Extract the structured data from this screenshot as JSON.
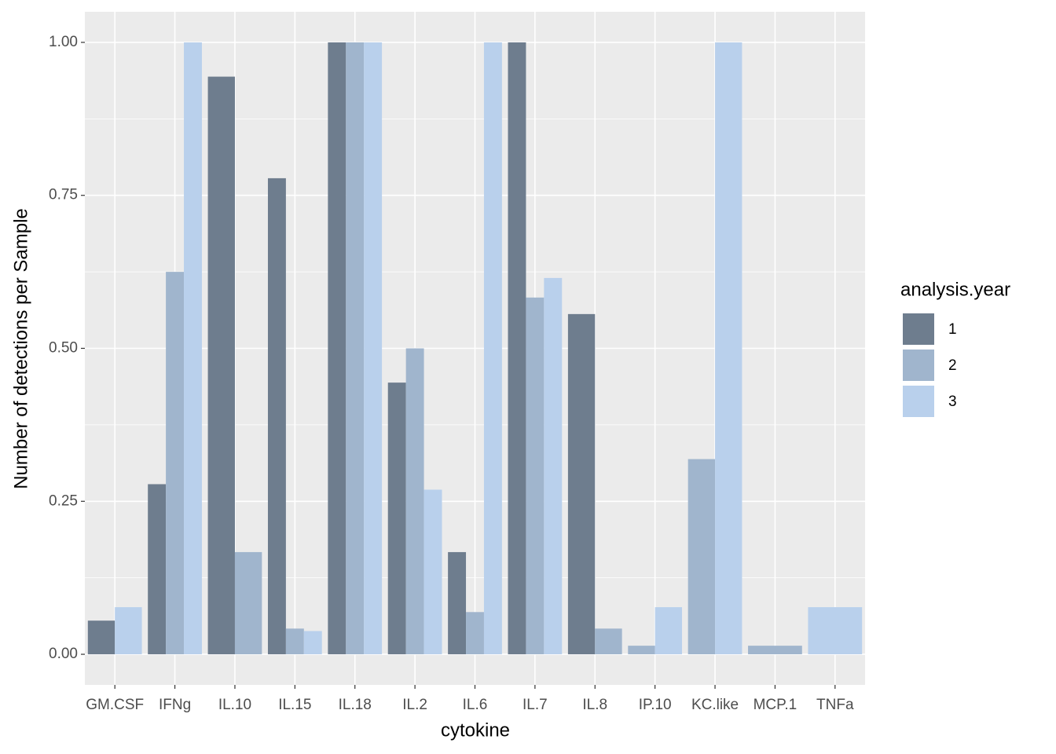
{
  "chart_data": {
    "type": "bar",
    "x_label": "cytokine",
    "y_label": "Number of detections per Sample",
    "legend_title": "analysis.year",
    "categories": [
      "GM.CSF",
      "IFNg",
      "IL.10",
      "IL.15",
      "IL.18",
      "IL.2",
      "IL.6",
      "IL.7",
      "IL.8",
      "IP.10",
      "KC.like",
      "MCP.1",
      "TNFa"
    ],
    "series": [
      {
        "name": "1",
        "color": "#6e7d8e",
        "values": [
          0.055,
          0.278,
          0.944,
          0.778,
          1.0,
          0.444,
          0.167,
          1.0,
          0.556,
          null,
          null,
          null,
          null
        ]
      },
      {
        "name": "2",
        "color": "#a0b5cd",
        "values": [
          null,
          0.625,
          0.167,
          0.042,
          1.0,
          0.5,
          0.069,
          0.583,
          0.042,
          0.014,
          0.319,
          0.014,
          null
        ]
      },
      {
        "name": "3",
        "color": "#b9d0ec",
        "values": [
          0.077,
          1.0,
          null,
          0.038,
          1.0,
          0.269,
          1.0,
          0.615,
          null,
          0.077,
          1.0,
          null,
          0.077
        ]
      }
    ],
    "ylim": [
      -0.05,
      1.05
    ],
    "yticks": [
      {
        "value": 0,
        "label": "0.00"
      },
      {
        "value": 0.25,
        "label": "0.25"
      },
      {
        "value": 0.5,
        "label": "0.50"
      },
      {
        "value": 0.75,
        "label": "0.75"
      },
      {
        "value": 1,
        "label": "1.00"
      }
    ],
    "grid": true,
    "legend_position": "right"
  }
}
